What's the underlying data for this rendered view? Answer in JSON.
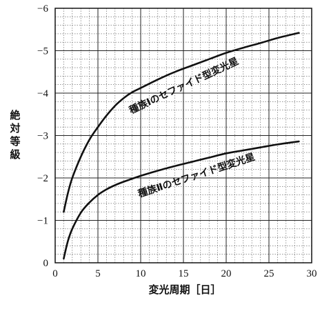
{
  "chart_data": {
    "type": "line",
    "title": "",
    "xlabel": "変光周期［日］",
    "ylabel": "絶対等級",
    "xlim": [
      0,
      30
    ],
    "ylim": [
      0,
      -6
    ],
    "y_inverted": true,
    "grid": true,
    "minor_grid": true,
    "x_ticks": [
      0,
      5,
      10,
      15,
      20,
      25,
      30
    ],
    "x_tick_labels": [
      "0",
      "5",
      "10",
      "15",
      "20",
      "25",
      "30"
    ],
    "y_ticks": [
      0,
      -1,
      -2,
      -3,
      -4,
      -5,
      -6
    ],
    "y_tick_labels": [
      "0",
      "−1",
      "−2",
      "−3",
      "−4",
      "−5",
      "−6"
    ],
    "series": [
      {
        "name": "種族Ⅰのセファイド型変光星",
        "x": [
          1.0,
          1.5,
          2,
          3,
          4,
          5,
          6,
          7,
          8,
          9,
          10,
          12,
          14,
          16,
          18,
          20,
          22,
          24,
          26,
          28.5
        ],
        "y": [
          -1.2,
          -1.65,
          -2.0,
          -2.5,
          -2.9,
          -3.2,
          -3.47,
          -3.7,
          -3.88,
          -4.02,
          -4.12,
          -4.32,
          -4.5,
          -4.65,
          -4.8,
          -4.95,
          -5.07,
          -5.18,
          -5.3,
          -5.42
        ]
      },
      {
        "name": "種族Ⅱのセファイド型変光星",
        "x": [
          1.0,
          1.5,
          2,
          3,
          4,
          5,
          6,
          7,
          8,
          9,
          10,
          12,
          14,
          16,
          18,
          20,
          22,
          24,
          26,
          28.5
        ],
        "y": [
          -0.1,
          -0.52,
          -0.8,
          -1.18,
          -1.42,
          -1.6,
          -1.73,
          -1.83,
          -1.91,
          -1.98,
          -2.05,
          -2.17,
          -2.28,
          -2.38,
          -2.48,
          -2.58,
          -2.65,
          -2.72,
          -2.79,
          -2.86
        ]
      }
    ]
  }
}
